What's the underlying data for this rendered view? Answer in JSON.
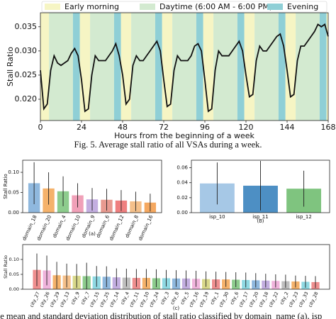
{
  "chart_data": [
    {
      "type": "line",
      "ylabel": "Stall Ratio",
      "xlabel": "Hours from the beginning of a week",
      "caption": "Fig. 5.  Average stall ratio of all VSAs during a week.",
      "bands": [
        {
          "name": "Early morning",
          "color": "#f6f5c4",
          "spans": [
            [
              0,
              5
            ],
            [
              23,
              29
            ],
            [
              47,
              53
            ],
            [
              71,
              77
            ],
            [
              95,
              101
            ],
            [
              119,
              125
            ],
            [
              143,
              149
            ],
            [
              167,
              168
            ]
          ]
        },
        {
          "name": "Daytime (6:00 AM - 6:00 PM)",
          "color": "#d3ead0",
          "spans": [
            [
              5,
              19
            ],
            [
              29,
              43
            ],
            [
              53,
              67
            ],
            [
              77,
              91
            ],
            [
              101,
              115
            ],
            [
              125,
              139
            ],
            [
              149,
              163
            ]
          ]
        },
        {
          "name": "Evening",
          "color": "#8fcfd6",
          "spans": [
            [
              19,
              23
            ],
            [
              43,
              47
            ],
            [
              67,
              71
            ],
            [
              91,
              95
            ],
            [
              115,
              119
            ],
            [
              139,
              143
            ],
            [
              163,
              167
            ]
          ]
        }
      ],
      "color": "#111111",
      "x": [
        0,
        2,
        4,
        6,
        8,
        10,
        12,
        14,
        16,
        18,
        20,
        22,
        24,
        26,
        28,
        30,
        32,
        34,
        36,
        38,
        40,
        42,
        44,
        46,
        48,
        50,
        52,
        54,
        56,
        58,
        60,
        62,
        64,
        66,
        68,
        70,
        72,
        74,
        76,
        78,
        80,
        82,
        84,
        86,
        88,
        90,
        92,
        94,
        96,
        98,
        100,
        102,
        104,
        106,
        108,
        110,
        112,
        114,
        116,
        118,
        120,
        122,
        124,
        126,
        128,
        130,
        132,
        134,
        136,
        138,
        140,
        142,
        144,
        146,
        148,
        150,
        152,
        154,
        156,
        158,
        160,
        162,
        164,
        166,
        168
      ],
      "values": [
        0.026,
        0.018,
        0.019,
        0.026,
        0.029,
        0.0275,
        0.027,
        0.0275,
        0.028,
        0.0295,
        0.0305,
        0.029,
        0.024,
        0.0175,
        0.018,
        0.025,
        0.029,
        0.028,
        0.028,
        0.028,
        0.029,
        0.03,
        0.0315,
        0.029,
        0.025,
        0.019,
        0.02,
        0.027,
        0.029,
        0.028,
        0.028,
        0.029,
        0.03,
        0.031,
        0.032,
        0.03,
        0.024,
        0.0185,
        0.019,
        0.026,
        0.029,
        0.028,
        0.028,
        0.028,
        0.029,
        0.031,
        0.0315,
        0.03,
        0.024,
        0.0175,
        0.018,
        0.026,
        0.03,
        0.029,
        0.029,
        0.029,
        0.03,
        0.031,
        0.032,
        0.03,
        0.025,
        0.0205,
        0.021,
        0.028,
        0.031,
        0.03,
        0.03,
        0.031,
        0.032,
        0.033,
        0.0335,
        0.031,
        0.026,
        0.0205,
        0.021,
        0.028,
        0.031,
        0.031,
        0.032,
        0.033,
        0.034,
        0.0355,
        0.035,
        0.0355,
        0.033
      ],
      "xlim": [
        0,
        168
      ],
      "xticks": [
        0,
        24,
        48,
        72,
        96,
        120,
        144,
        168
      ],
      "ylim": [
        0.0156,
        0.0379
      ],
      "yticks": [
        {
          "value": 0.02,
          "label": "0.020"
        },
        {
          "value": 0.025,
          "label": "0.025"
        },
        {
          "value": 0.03,
          "label": "0.030"
        },
        {
          "value": 0.035,
          "label": "0.035"
        }
      ]
    },
    {
      "type": "bar",
      "ylabel": "Stall Ratio",
      "label": "(a)",
      "categories": [
        "domain_18",
        "domain_20",
        "domain_4",
        "domain_10",
        "domain_9",
        "domain_6",
        "domain_12",
        "domain_8",
        "domain_16"
      ],
      "values": [
        0.073,
        0.06,
        0.053,
        0.043,
        0.033,
        0.032,
        0.03,
        0.028,
        0.025
      ],
      "errors": [
        0.052,
        0.04,
        0.037,
        0.03,
        0.028,
        0.027,
        0.026,
        0.024,
        0.022
      ],
      "colors": [
        "#8fb8de",
        "#f5b26b",
        "#8dcc8d",
        "#f0a0b8",
        "#c3aee0",
        "#e89a90",
        "#ef7f7f",
        "#f5c08a",
        "#f5a860"
      ],
      "ylim": [
        0,
        0.13
      ],
      "yticks": [
        {
          "value": 0,
          "label": "0.00"
        },
        {
          "value": 0.05,
          "label": "0.05"
        },
        {
          "value": 0.1,
          "label": "0.10"
        }
      ]
    },
    {
      "type": "bar",
      "label": "(b)",
      "categories": [
        "isp_10",
        "isp_11",
        "isp_12"
      ],
      "values": [
        0.039,
        0.036,
        0.032
      ],
      "errors": [
        0.028,
        0.033,
        0.024
      ],
      "colors": [
        "#a6c8e6",
        "#4d8fc4",
        "#7fc47f"
      ],
      "ylim": [
        0,
        0.07
      ],
      "yticks": [
        {
          "value": 0,
          "label": "0.00"
        },
        {
          "value": 0.02,
          "label": "0.02"
        },
        {
          "value": 0.04,
          "label": "0.04"
        },
        {
          "value": 0.06,
          "label": "0.06"
        }
      ]
    },
    {
      "type": "bar",
      "ylabel": "Stall Ratio",
      "label": "(c)",
      "caption": "he mean and standard deviation distribution of stall ratio classified by domain_name (a), isp",
      "categories": [
        "city_27",
        "city_26",
        "city_29",
        "city_13",
        "city_9",
        "city_7",
        "city_15",
        "city_25",
        "city_14",
        "city_4",
        "city_11",
        "city_10",
        "city_24",
        "city_3",
        "city_8",
        "city_5",
        "city_16",
        "city_19",
        "city_1",
        "city_30",
        "city_6",
        "city_17",
        "city_20",
        "city_18",
        "city_22",
        "city_2",
        "city_23",
        "city_33",
        "city_28"
      ],
      "values": [
        0.065,
        0.063,
        0.047,
        0.046,
        0.045,
        0.044,
        0.043,
        0.042,
        0.04,
        0.039,
        0.038,
        0.038,
        0.037,
        0.037,
        0.036,
        0.036,
        0.035,
        0.034,
        0.033,
        0.033,
        0.032,
        0.031,
        0.03,
        0.029,
        0.028,
        0.027,
        0.026,
        0.025,
        0.024
      ],
      "errors": [
        0.055,
        0.05,
        0.045,
        0.04,
        0.04,
        0.045,
        0.035,
        0.035,
        0.03,
        0.03,
        0.03,
        0.03,
        0.03,
        0.028,
        0.028,
        0.027,
        0.027,
        0.026,
        0.026,
        0.025,
        0.025,
        0.025,
        0.024,
        0.023,
        0.022,
        0.022,
        0.02,
        0.02,
        0.02
      ],
      "colors": [
        "#ef8f8f",
        "#f0b4dc",
        "#f5b26b",
        "#f5c08a",
        "#d8d88a",
        "#8dcc8d",
        "#8fd9e3",
        "#8fb8de",
        "#c3aee0",
        "#bfbfbf",
        "#ef8f8f",
        "#f5b26b",
        "#8dcc8d",
        "#8fd9e3",
        "#8fb8de",
        "#c3aee0",
        "#f0b4dc",
        "#d8d88a",
        "#ef8f8f",
        "#f5b26b",
        "#8dcc8d",
        "#8fd9e3",
        "#8fb8de",
        "#c3aee0",
        "#f0b4dc",
        "#bfbfbf",
        "#f5b26b",
        "#8fd9e3",
        "#ef8f8f"
      ],
      "ylim": [
        0,
        0.15
      ],
      "yticks": [
        {
          "value": 0,
          "label": "0.00"
        },
        {
          "value": 0.05,
          "label": "0.05"
        },
        {
          "value": 0.1,
          "label": "0.10"
        }
      ]
    }
  ]
}
